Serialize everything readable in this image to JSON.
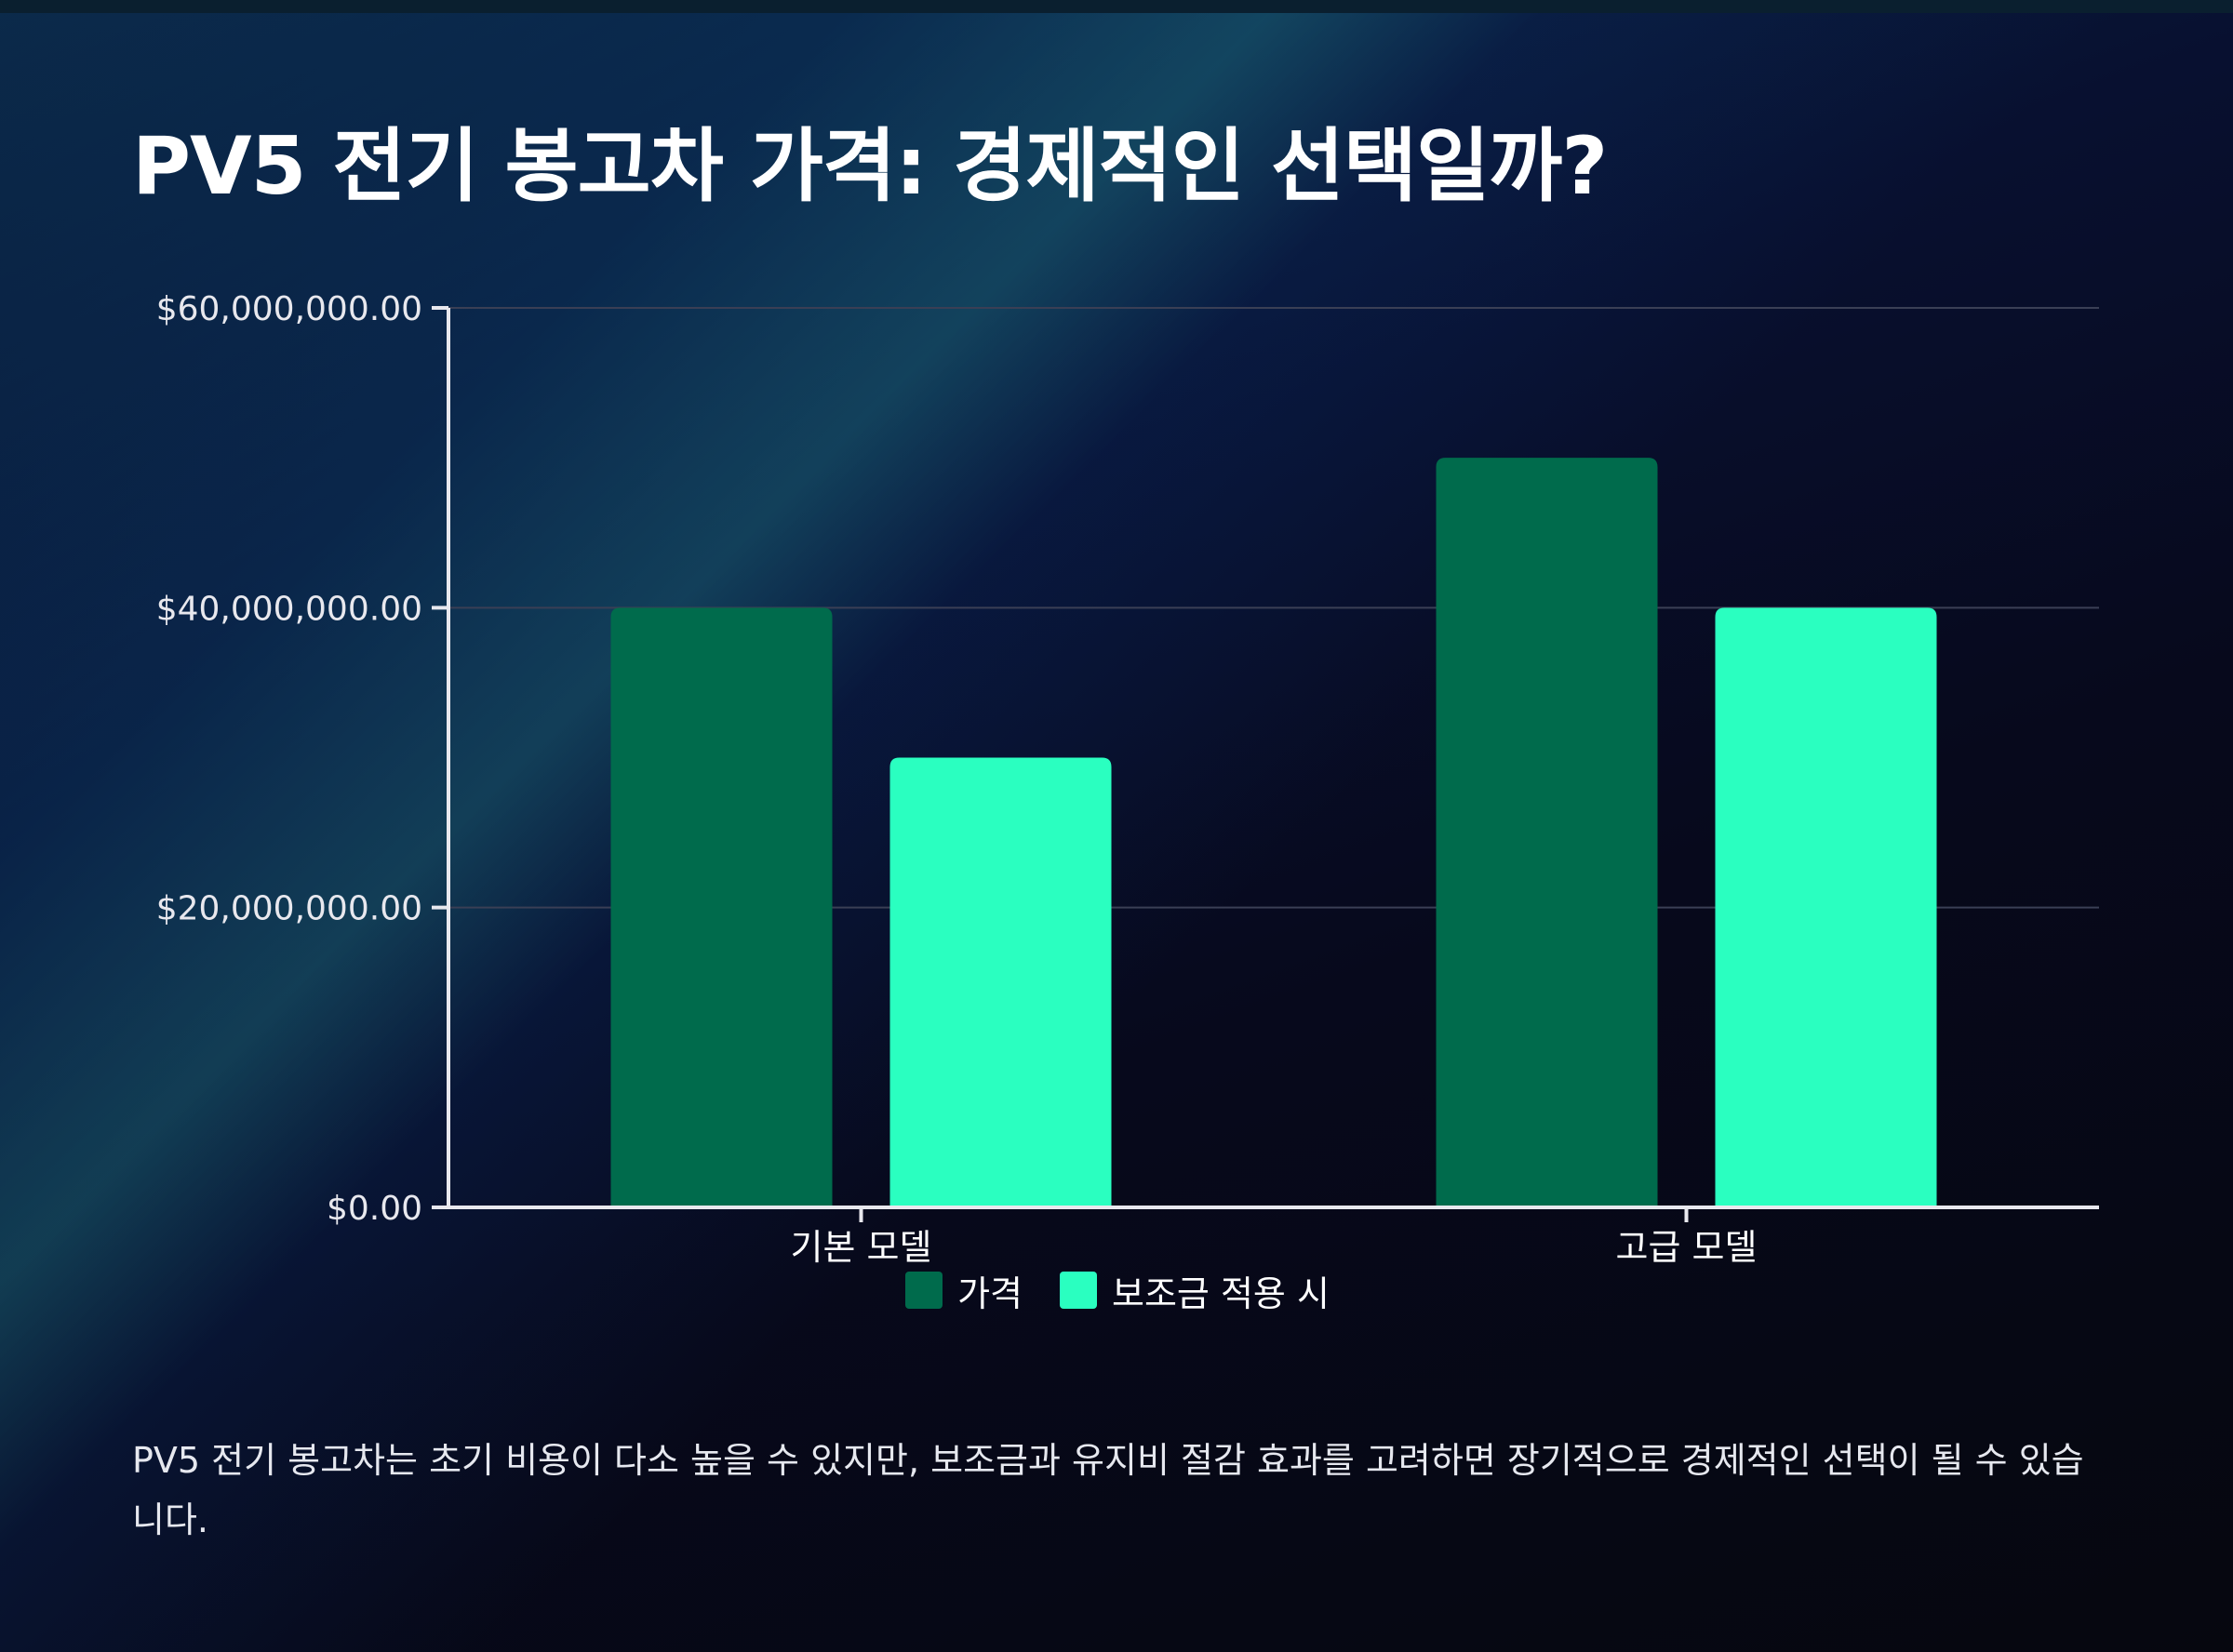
{
  "title": "PV5 전기 봉고차 가격: 경제적인 선택일까?",
  "description": "PV5 전기 봉고차는 초기 비용이 다소 높을 수 있지만, 보조금과 유지비 절감 효과를 고려하면 장기적으로 경제적인 선택이 될 수 있습니다.",
  "chart_data": {
    "type": "bar",
    "categories": [
      "기본 모델",
      "고급 모델"
    ],
    "series": [
      {
        "name": "가격",
        "values": [
          40000000,
          50000000
        ],
        "color": "#006b4c"
      },
      {
        "name": "보조금 적용 시",
        "values": [
          30000000,
          40000000
        ],
        "color": "#2affc0"
      }
    ],
    "ylim": [
      0,
      60000000
    ],
    "yticks": [
      0,
      20000000,
      40000000,
      60000000
    ],
    "ytick_labels": [
      "$0.00",
      "$20,000,000.00",
      "$40,000,000.00",
      "$60,000,000.00"
    ],
    "grid": true,
    "legend_position": "bottom-center",
    "axis_color": "#e8e8ee",
    "grid_color": "#3a3f55"
  }
}
